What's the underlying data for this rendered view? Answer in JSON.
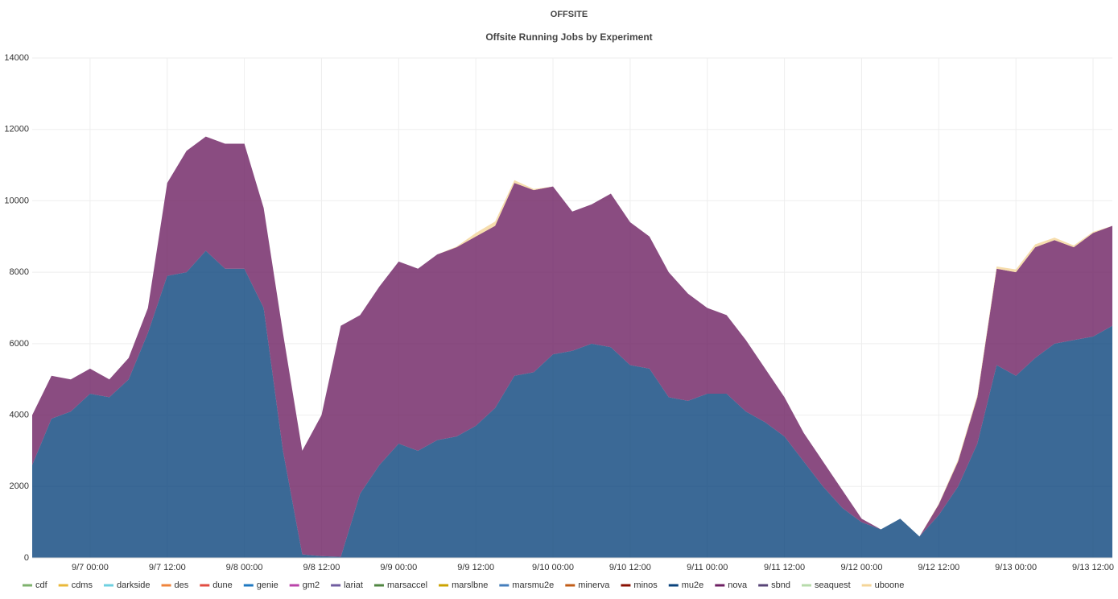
{
  "chart_data": {
    "type": "stacked-area",
    "title": "OFFSITE",
    "subtitle": "Offsite Running Jobs by Experiment",
    "x": [
      "9/6 15:00",
      "9/6 18:00",
      "9/6 21:00",
      "9/7 00:00",
      "9/7 03:00",
      "9/7 06:00",
      "9/7 09:00",
      "9/7 12:00",
      "9/7 15:00",
      "9/7 18:00",
      "9/7 21:00",
      "9/8 00:00",
      "9/8 03:00",
      "9/8 06:00",
      "9/8 09:00",
      "9/8 12:00",
      "9/8 15:00",
      "9/8 18:00",
      "9/8 21:00",
      "9/9 00:00",
      "9/9 03:00",
      "9/9 06:00",
      "9/9 09:00",
      "9/9 12:00",
      "9/9 15:00",
      "9/9 18:00",
      "9/9 21:00",
      "9/10 00:00",
      "9/10 03:00",
      "9/10 06:00",
      "9/10 09:00",
      "9/10 12:00",
      "9/10 15:00",
      "9/10 18:00",
      "9/10 21:00",
      "9/11 00:00",
      "9/11 03:00",
      "9/11 06:00",
      "9/11 09:00",
      "9/11 12:00",
      "9/11 15:00",
      "9/11 18:00",
      "9/11 21:00",
      "9/12 00:00",
      "9/12 03:00",
      "9/12 06:00",
      "9/12 09:00",
      "9/12 12:00",
      "9/12 15:00",
      "9/12 18:00",
      "9/12 21:00",
      "9/13 00:00",
      "9/13 03:00",
      "9/13 06:00",
      "9/13 09:00",
      "9/13 12:00",
      "9/13 15:00"
    ],
    "xlim": [
      "9/6 15:00",
      "9/13 15:00"
    ],
    "xticks": [
      "9/7 00:00",
      "9/7 12:00",
      "9/8 00:00",
      "9/8 12:00",
      "9/9 00:00",
      "9/9 12:00",
      "9/10 00:00",
      "9/10 12:00",
      "9/11 00:00",
      "9/11 12:00",
      "9/12 00:00",
      "9/12 12:00",
      "9/13 00:00",
      "9/13 12:00"
    ],
    "ylim": [
      0,
      14000
    ],
    "yticks": [
      0,
      2000,
      4000,
      6000,
      8000,
      10000,
      12000,
      14000
    ],
    "grid": true,
    "fill_opacity": 0.8,
    "legend": "bottom",
    "series": [
      {
        "name": "cdf",
        "color": "#7eb26d",
        "values": [
          0,
          0,
          0,
          0,
          0,
          0,
          0,
          0,
          0,
          0,
          0,
          0,
          0,
          0,
          0,
          0,
          0,
          0,
          0,
          0,
          0,
          0,
          0,
          0,
          0,
          0,
          0,
          0,
          0,
          0,
          0,
          0,
          0,
          0,
          0,
          0,
          0,
          0,
          0,
          0,
          0,
          0,
          0,
          0,
          0,
          0,
          0,
          0,
          0,
          0,
          0,
          0,
          0,
          0,
          0,
          0,
          0
        ]
      },
      {
        "name": "cdms",
        "color": "#eab839",
        "values": [
          0,
          0,
          0,
          0,
          0,
          0,
          0,
          0,
          0,
          0,
          0,
          0,
          0,
          0,
          0,
          0,
          0,
          0,
          0,
          0,
          0,
          0,
          0,
          0,
          0,
          0,
          0,
          0,
          0,
          0,
          0,
          0,
          0,
          0,
          0,
          0,
          0,
          0,
          0,
          0,
          0,
          0,
          0,
          0,
          0,
          0,
          0,
          0,
          0,
          0,
          0,
          0,
          0,
          0,
          0,
          0,
          0
        ]
      },
      {
        "name": "darkside",
        "color": "#6ed0e0",
        "values": [
          0,
          0,
          0,
          0,
          0,
          0,
          0,
          0,
          0,
          0,
          0,
          0,
          0,
          0,
          0,
          0,
          0,
          0,
          0,
          0,
          0,
          0,
          0,
          0,
          0,
          0,
          0,
          0,
          0,
          0,
          0,
          0,
          0,
          0,
          0,
          0,
          0,
          0,
          0,
          0,
          0,
          0,
          0,
          0,
          0,
          0,
          0,
          0,
          0,
          0,
          0,
          0,
          0,
          0,
          0,
          0,
          0
        ]
      },
      {
        "name": "des",
        "color": "#ef843c",
        "values": [
          0,
          0,
          0,
          0,
          0,
          0,
          0,
          0,
          0,
          0,
          0,
          0,
          0,
          0,
          0,
          0,
          0,
          0,
          0,
          0,
          0,
          0,
          0,
          0,
          0,
          0,
          0,
          0,
          0,
          0,
          0,
          0,
          0,
          0,
          0,
          0,
          0,
          0,
          0,
          0,
          0,
          0,
          0,
          0,
          0,
          0,
          0,
          0,
          0,
          0,
          0,
          0,
          0,
          0,
          0,
          0,
          0
        ]
      },
      {
        "name": "dune",
        "color": "#e24d42",
        "values": [
          0,
          0,
          0,
          0,
          0,
          0,
          0,
          0,
          0,
          0,
          0,
          0,
          0,
          0,
          0,
          0,
          0,
          0,
          0,
          0,
          0,
          0,
          0,
          0,
          0,
          0,
          0,
          0,
          0,
          0,
          0,
          0,
          0,
          0,
          0,
          0,
          0,
          0,
          0,
          0,
          0,
          0,
          0,
          0,
          0,
          0,
          0,
          0,
          0,
          0,
          0,
          0,
          0,
          0,
          0,
          0,
          0
        ]
      },
      {
        "name": "genie",
        "color": "#1f78c1",
        "values": [
          0,
          0,
          0,
          0,
          0,
          0,
          0,
          0,
          0,
          0,
          0,
          0,
          0,
          0,
          0,
          0,
          0,
          0,
          0,
          0,
          0,
          0,
          0,
          0,
          0,
          0,
          0,
          0,
          0,
          0,
          0,
          0,
          0,
          0,
          0,
          0,
          0,
          0,
          0,
          0,
          0,
          0,
          0,
          0,
          0,
          0,
          0,
          0,
          0,
          0,
          0,
          0,
          0,
          0,
          0,
          0,
          0
        ]
      },
      {
        "name": "gm2",
        "color": "#ba43a9",
        "values": [
          0,
          0,
          0,
          0,
          0,
          0,
          0,
          0,
          0,
          0,
          0,
          0,
          0,
          0,
          0,
          0,
          0,
          0,
          0,
          0,
          0,
          0,
          0,
          0,
          0,
          0,
          0,
          0,
          0,
          0,
          0,
          0,
          0,
          0,
          0,
          0,
          0,
          0,
          0,
          0,
          0,
          0,
          0,
          0,
          0,
          0,
          0,
          0,
          0,
          0,
          0,
          0,
          0,
          0,
          0,
          0,
          0
        ]
      },
      {
        "name": "lariat",
        "color": "#705da0",
        "values": [
          0,
          0,
          0,
          0,
          0,
          0,
          0,
          0,
          0,
          0,
          0,
          0,
          0,
          0,
          0,
          0,
          0,
          0,
          0,
          0,
          0,
          0,
          0,
          0,
          0,
          0,
          0,
          0,
          0,
          0,
          0,
          0,
          0,
          0,
          0,
          0,
          0,
          0,
          0,
          0,
          0,
          0,
          0,
          0,
          0,
          0,
          0,
          0,
          0,
          0,
          0,
          0,
          0,
          0,
          0,
          0,
          0
        ]
      },
      {
        "name": "marsaccel",
        "color": "#508642",
        "values": [
          0,
          0,
          0,
          0,
          0,
          0,
          0,
          0,
          0,
          0,
          0,
          0,
          0,
          0,
          0,
          0,
          0,
          0,
          0,
          0,
          0,
          0,
          0,
          0,
          0,
          0,
          0,
          0,
          0,
          0,
          0,
          0,
          0,
          0,
          0,
          0,
          0,
          0,
          0,
          0,
          0,
          0,
          0,
          0,
          0,
          0,
          0,
          0,
          0,
          0,
          0,
          0,
          0,
          0,
          0,
          0,
          0
        ]
      },
      {
        "name": "marslbne",
        "color": "#cca300",
        "values": [
          0,
          0,
          0,
          0,
          0,
          0,
          0,
          0,
          0,
          0,
          0,
          0,
          0,
          0,
          0,
          0,
          0,
          0,
          0,
          0,
          0,
          0,
          0,
          0,
          0,
          0,
          0,
          0,
          0,
          0,
          0,
          0,
          0,
          0,
          0,
          0,
          0,
          0,
          0,
          0,
          0,
          0,
          0,
          0,
          0,
          0,
          0,
          0,
          0,
          0,
          0,
          0,
          0,
          0,
          0,
          0,
          0
        ]
      },
      {
        "name": "marsmu2e",
        "color": "#447ebc",
        "values": [
          0,
          0,
          0,
          0,
          0,
          0,
          0,
          0,
          0,
          0,
          0,
          0,
          0,
          0,
          0,
          0,
          0,
          0,
          0,
          0,
          0,
          0,
          0,
          0,
          0,
          0,
          0,
          0,
          0,
          0,
          0,
          0,
          0,
          0,
          0,
          0,
          0,
          0,
          0,
          0,
          0,
          0,
          0,
          0,
          0,
          0,
          0,
          0,
          0,
          0,
          0,
          0,
          0,
          0,
          0,
          0,
          0
        ]
      },
      {
        "name": "minerva",
        "color": "#c15c17",
        "values": [
          0,
          0,
          0,
          0,
          0,
          0,
          0,
          0,
          0,
          0,
          0,
          0,
          0,
          0,
          0,
          0,
          0,
          0,
          0,
          0,
          0,
          0,
          0,
          0,
          0,
          0,
          0,
          0,
          0,
          0,
          0,
          0,
          0,
          0,
          0,
          0,
          0,
          0,
          0,
          0,
          0,
          0,
          0,
          0,
          0,
          0,
          0,
          0,
          0,
          0,
          0,
          0,
          0,
          0,
          0,
          0,
          0
        ]
      },
      {
        "name": "minos",
        "color": "#890f02",
        "values": [
          0,
          0,
          0,
          0,
          0,
          0,
          0,
          0,
          0,
          0,
          0,
          0,
          0,
          0,
          0,
          0,
          0,
          0,
          0,
          0,
          0,
          0,
          0,
          0,
          0,
          0,
          0,
          0,
          0,
          0,
          0,
          0,
          0,
          0,
          0,
          0,
          0,
          0,
          0,
          0,
          0,
          0,
          0,
          0,
          0,
          0,
          0,
          0,
          0,
          0,
          0,
          0,
          0,
          0,
          0,
          0,
          0
        ]
      },
      {
        "name": "mu2e",
        "color": "#0a437c",
        "values": [
          2600,
          3900,
          4100,
          4600,
          4500,
          5000,
          6300,
          7900,
          8000,
          8600,
          8100,
          8100,
          7000,
          3000,
          100,
          50,
          30,
          1800,
          2600,
          3200,
          3000,
          3300,
          3400,
          3700,
          4200,
          5100,
          5200,
          5700,
          5800,
          6000,
          5900,
          5400,
          5300,
          4500,
          4400,
          4600,
          4600,
          4100,
          3800,
          3400,
          2700,
          2000,
          1400,
          1000,
          800,
          1100,
          600,
          1200,
          2000,
          3200,
          5400,
          5100,
          5600,
          6000,
          6100,
          6200,
          6500
        ]
      },
      {
        "name": "nova",
        "color": "#6d1f62",
        "values": [
          1400,
          1200,
          900,
          700,
          500,
          600,
          700,
          2600,
          3400,
          3200,
          3500,
          3500,
          2800,
          3300,
          2900,
          3950,
          6470,
          5000,
          5000,
          5100,
          5100,
          5200,
          5300,
          5300,
          5100,
          5400,
          5100,
          4700,
          3900,
          3900,
          4300,
          4000,
          3700,
          3500,
          3000,
          2400,
          2200,
          2000,
          1500,
          1100,
          800,
          700,
          500,
          100,
          0,
          0,
          0,
          300,
          700,
          1300,
          2700,
          2900,
          3100,
          2900,
          2600,
          2900,
          2800
        ]
      },
      {
        "name": "sbnd",
        "color": "#584477",
        "values": [
          0,
          0,
          0,
          0,
          0,
          0,
          0,
          0,
          0,
          0,
          0,
          0,
          0,
          0,
          0,
          0,
          0,
          0,
          0,
          0,
          0,
          0,
          0,
          0,
          0,
          0,
          0,
          0,
          0,
          0,
          0,
          0,
          0,
          0,
          0,
          0,
          0,
          0,
          0,
          0,
          0,
          0,
          0,
          0,
          0,
          0,
          0,
          0,
          0,
          0,
          0,
          0,
          0,
          0,
          0,
          0,
          0
        ]
      },
      {
        "name": "seaquest",
        "color": "#b7dbab",
        "values": [
          0,
          0,
          0,
          0,
          0,
          0,
          0,
          0,
          0,
          0,
          0,
          0,
          0,
          0,
          0,
          0,
          0,
          0,
          0,
          0,
          0,
          0,
          0,
          0,
          0,
          0,
          0,
          0,
          0,
          0,
          0,
          0,
          0,
          0,
          0,
          0,
          0,
          0,
          0,
          0,
          0,
          0,
          0,
          0,
          0,
          0,
          0,
          0,
          0,
          0,
          0,
          0,
          0,
          0,
          0,
          0,
          0
        ]
      },
      {
        "name": "uboone",
        "color": "#f4d598",
        "values": [
          0,
          0,
          0,
          0,
          0,
          0,
          0,
          0,
          0,
          0,
          0,
          0,
          0,
          0,
          0,
          0,
          0,
          0,
          0,
          0,
          0,
          0,
          20,
          100,
          120,
          80,
          30,
          0,
          0,
          0,
          0,
          0,
          0,
          0,
          0,
          0,
          0,
          0,
          0,
          0,
          0,
          0,
          0,
          0,
          0,
          0,
          0,
          20,
          50,
          60,
          60,
          80,
          80,
          70,
          50,
          30,
          0
        ]
      }
    ]
  }
}
